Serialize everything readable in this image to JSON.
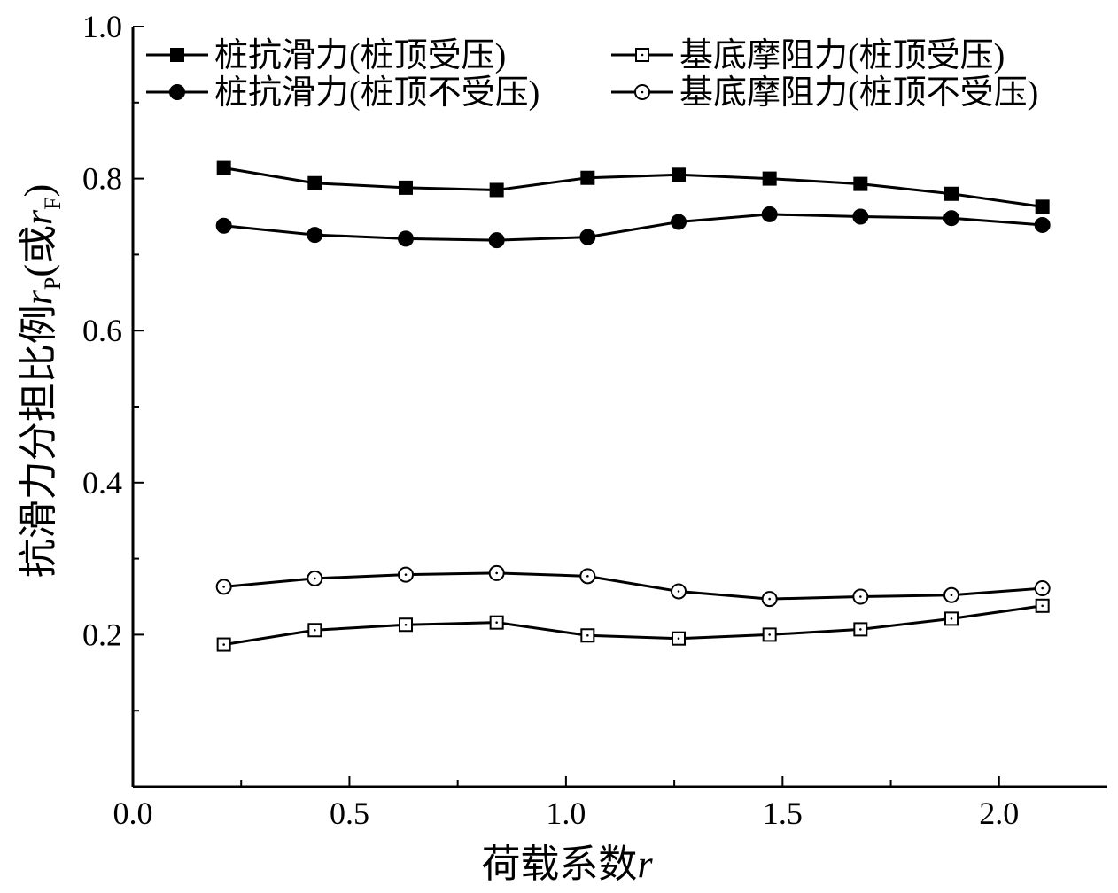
{
  "chart_data": {
    "type": "line",
    "xlabel": "荷载系数",
    "xlabel_var": "r",
    "ylabel": "抗滑力分担比例",
    "ylabel_var1": "r",
    "ylabel_sub1": "P",
    "ylabel_mid": "(或",
    "ylabel_var2": "r",
    "ylabel_sub2": "F",
    "ylabel_end": ")",
    "xlim": [
      0.0,
      2.25
    ],
    "ylim": [
      0.0,
      1.0
    ],
    "x_ticks": [
      "0.0",
      "0.5",
      "1.0",
      "1.5",
      "2.0"
    ],
    "y_ticks": [
      "0.2",
      "0.4",
      "0.6",
      "0.8",
      "1.0"
    ],
    "x": [
      0.21,
      0.42,
      0.63,
      0.84,
      1.05,
      1.26,
      1.47,
      1.68,
      1.89,
      2.1
    ],
    "legend_position": "top",
    "series": [
      {
        "name": "桩抗滑力(桩顶受压)",
        "marker": "filled-square",
        "values": [
          0.814,
          0.794,
          0.788,
          0.785,
          0.801,
          0.805,
          0.8,
          0.793,
          0.78,
          0.763
        ]
      },
      {
        "name": "基底摩阻力(桩顶受压)",
        "marker": "open-square",
        "values": [
          0.187,
          0.206,
          0.213,
          0.216,
          0.199,
          0.195,
          0.2,
          0.207,
          0.221,
          0.238
        ]
      },
      {
        "name": "桩抗滑力(桩顶不受压)",
        "marker": "filled-circle",
        "values": [
          0.738,
          0.726,
          0.721,
          0.719,
          0.723,
          0.743,
          0.753,
          0.75,
          0.748,
          0.739
        ]
      },
      {
        "name": "基底摩阻力(桩顶不受压)",
        "marker": "open-circle",
        "values": [
          0.263,
          0.274,
          0.279,
          0.281,
          0.277,
          0.257,
          0.247,
          0.25,
          0.252,
          0.261
        ]
      }
    ]
  }
}
